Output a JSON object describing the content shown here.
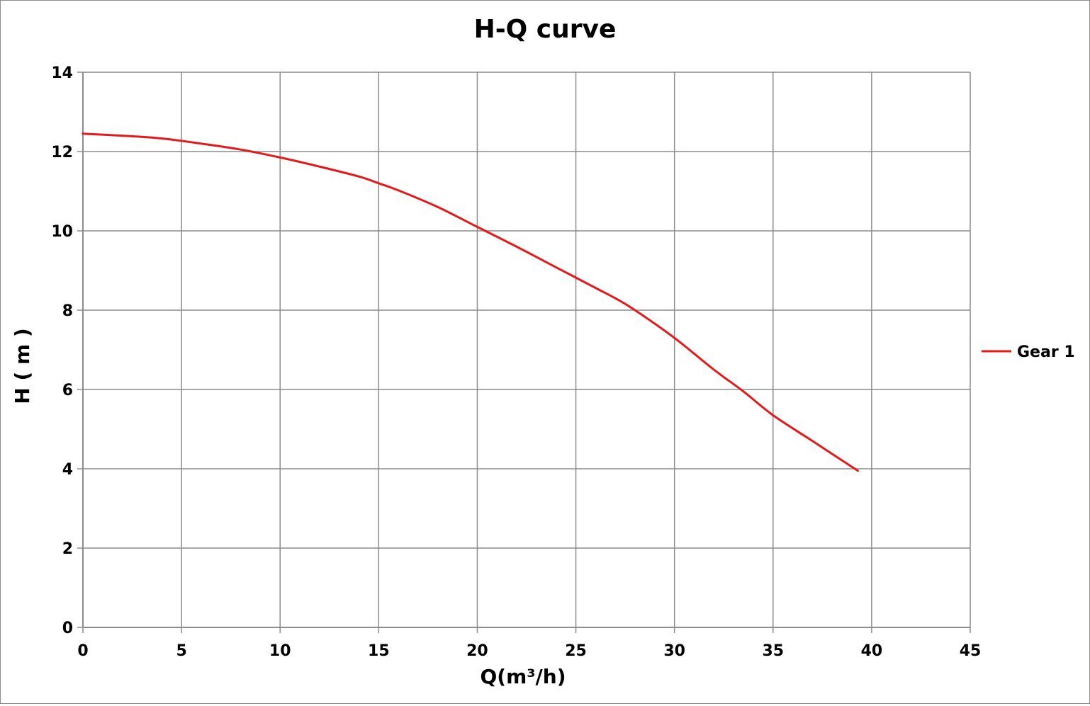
{
  "chart_data": {
    "type": "line",
    "title": "H-Q  curve",
    "xlabel": "Q(m³/h)",
    "ylabel": "H ( m )",
    "xlim": [
      0,
      45
    ],
    "ylim": [
      0,
      14
    ],
    "x_ticks": [
      0,
      5,
      10,
      15,
      20,
      25,
      30,
      35,
      40,
      45
    ],
    "y_ticks": [
      0,
      2,
      4,
      6,
      8,
      10,
      12,
      14
    ],
    "grid": true,
    "legend_position": "right",
    "series": [
      {
        "name": "Gear 1",
        "color": "#e31a1c",
        "x": [
          0,
          2,
          4,
          6,
          8,
          10,
          12,
          14,
          15,
          16,
          18,
          20,
          22,
          24,
          26,
          27,
          28,
          30,
          32,
          33.5,
          35,
          37,
          39.3
        ],
        "y": [
          12.45,
          12.4,
          12.33,
          12.2,
          12.05,
          11.85,
          11.62,
          11.37,
          11.2,
          11.02,
          10.6,
          10.1,
          9.6,
          9.08,
          8.56,
          8.3,
          8.0,
          7.3,
          6.5,
          5.95,
          5.35,
          4.7,
          3.95
        ]
      }
    ]
  }
}
